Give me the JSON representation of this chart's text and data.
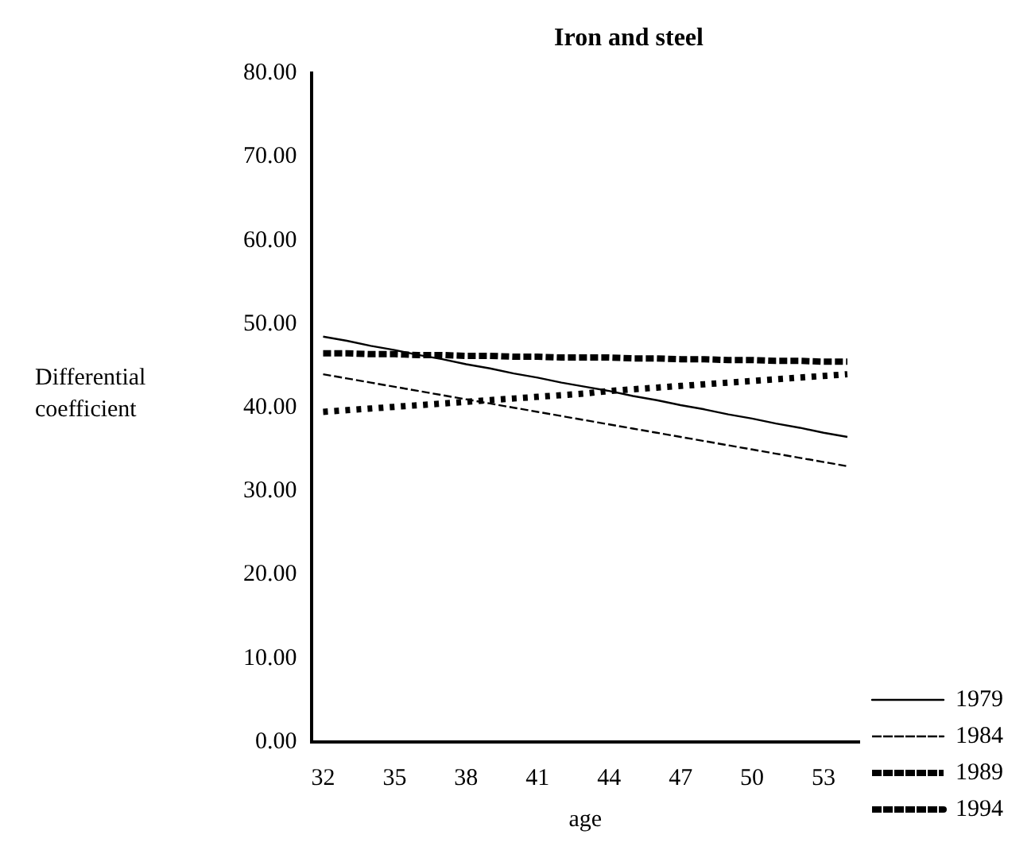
{
  "chart_data": {
    "type": "line",
    "title": "Iron and steel",
    "xlabel": "age",
    "ylabel": "Differential coefficient",
    "categories": [
      "32",
      null,
      null,
      "35",
      null,
      null,
      "38",
      null,
      null,
      "41",
      null,
      null,
      "44",
      null,
      null,
      "47",
      null,
      null,
      "50",
      null,
      null,
      "53",
      null
    ],
    "series": [
      {
        "name": "1979",
        "color": "#000000",
        "line_style": "solid",
        "values": [
          48.5,
          48.0,
          47.4,
          46.9,
          46.3,
          45.8,
          45.2,
          44.7,
          44.1,
          43.6,
          43.0,
          42.5,
          42.0,
          41.4,
          40.9,
          40.3,
          39.8,
          39.2,
          38.7,
          38.1,
          37.6,
          37.0,
          36.5
        ]
      },
      {
        "name": "1984",
        "color": "#000000",
        "line_style": "dashed",
        "values": [
          44,
          43.5,
          43,
          42.5,
          42,
          41.5,
          41,
          40.5,
          40,
          39.5,
          39,
          38.5,
          38,
          37.5,
          37,
          36.5,
          36,
          35.5,
          35,
          34.5,
          34,
          33.5,
          33
        ]
      },
      {
        "name": "1989",
        "color": "#000000",
        "line_style": "dotted",
        "values": [
          39.5,
          39.7,
          39.9,
          40.1,
          40.3,
          40.5,
          40.7,
          40.9,
          41.1,
          41.3,
          41.5,
          41.7,
          42.0,
          42.2,
          42.4,
          42.6,
          42.8,
          43.0,
          43.2,
          43.4,
          43.6,
          43.8,
          44.0
        ]
      },
      {
        "name": "1994",
        "color": "#000000",
        "line_style": "dashed",
        "values": [
          46.5,
          46.5,
          46.4,
          46.4,
          46.3,
          46.3,
          46.2,
          46.2,
          46.1,
          46.1,
          46.0,
          46.0,
          46.0,
          45.9,
          45.9,
          45.8,
          45.8,
          45.7,
          45.7,
          45.6,
          45.6,
          45.5,
          45.5
        ]
      }
    ],
    "ylim": [
      0,
      80
    ],
    "yticks": [
      {
        "value": 0,
        "label": "0.00"
      },
      {
        "value": 10,
        "label": "10.00"
      },
      {
        "value": 20,
        "label": "20.00"
      },
      {
        "value": 30,
        "label": "30.00"
      },
      {
        "value": 40,
        "label": "40.00"
      },
      {
        "value": 50,
        "label": "50.00"
      },
      {
        "value": 60,
        "label": "60.00"
      },
      {
        "value": 70,
        "label": "70.00"
      },
      {
        "value": 80,
        "label": "80.00"
      }
    ],
    "grid": false,
    "legend": "right",
    "marker": "none"
  }
}
